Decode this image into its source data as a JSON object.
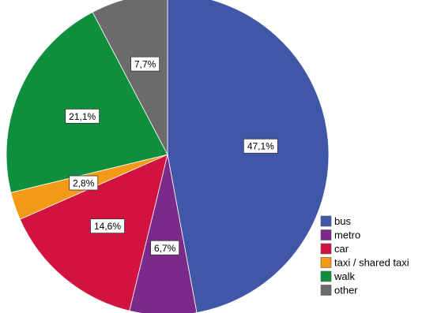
{
  "chart_data": {
    "type": "pie",
    "title": "",
    "categories": [
      "bus",
      "metro",
      "car",
      "taxi / shared taxi",
      "walk",
      "other"
    ],
    "values": [
      47.1,
      6.7,
      14.6,
      2.8,
      21.1,
      7.7
    ],
    "value_labels": [
      "47,1%",
      "6,7%",
      "14,6%",
      "2,8%",
      "21,1%",
      "7,7%"
    ],
    "colors": [
      "#3f57a6",
      "#7b2a8a",
      "#d3133f",
      "#f59a16",
      "#0f8f3e",
      "#6b6b6b"
    ],
    "start_angle_deg": 0,
    "direction": "clockwise",
    "legend_position": "bottom-right"
  }
}
